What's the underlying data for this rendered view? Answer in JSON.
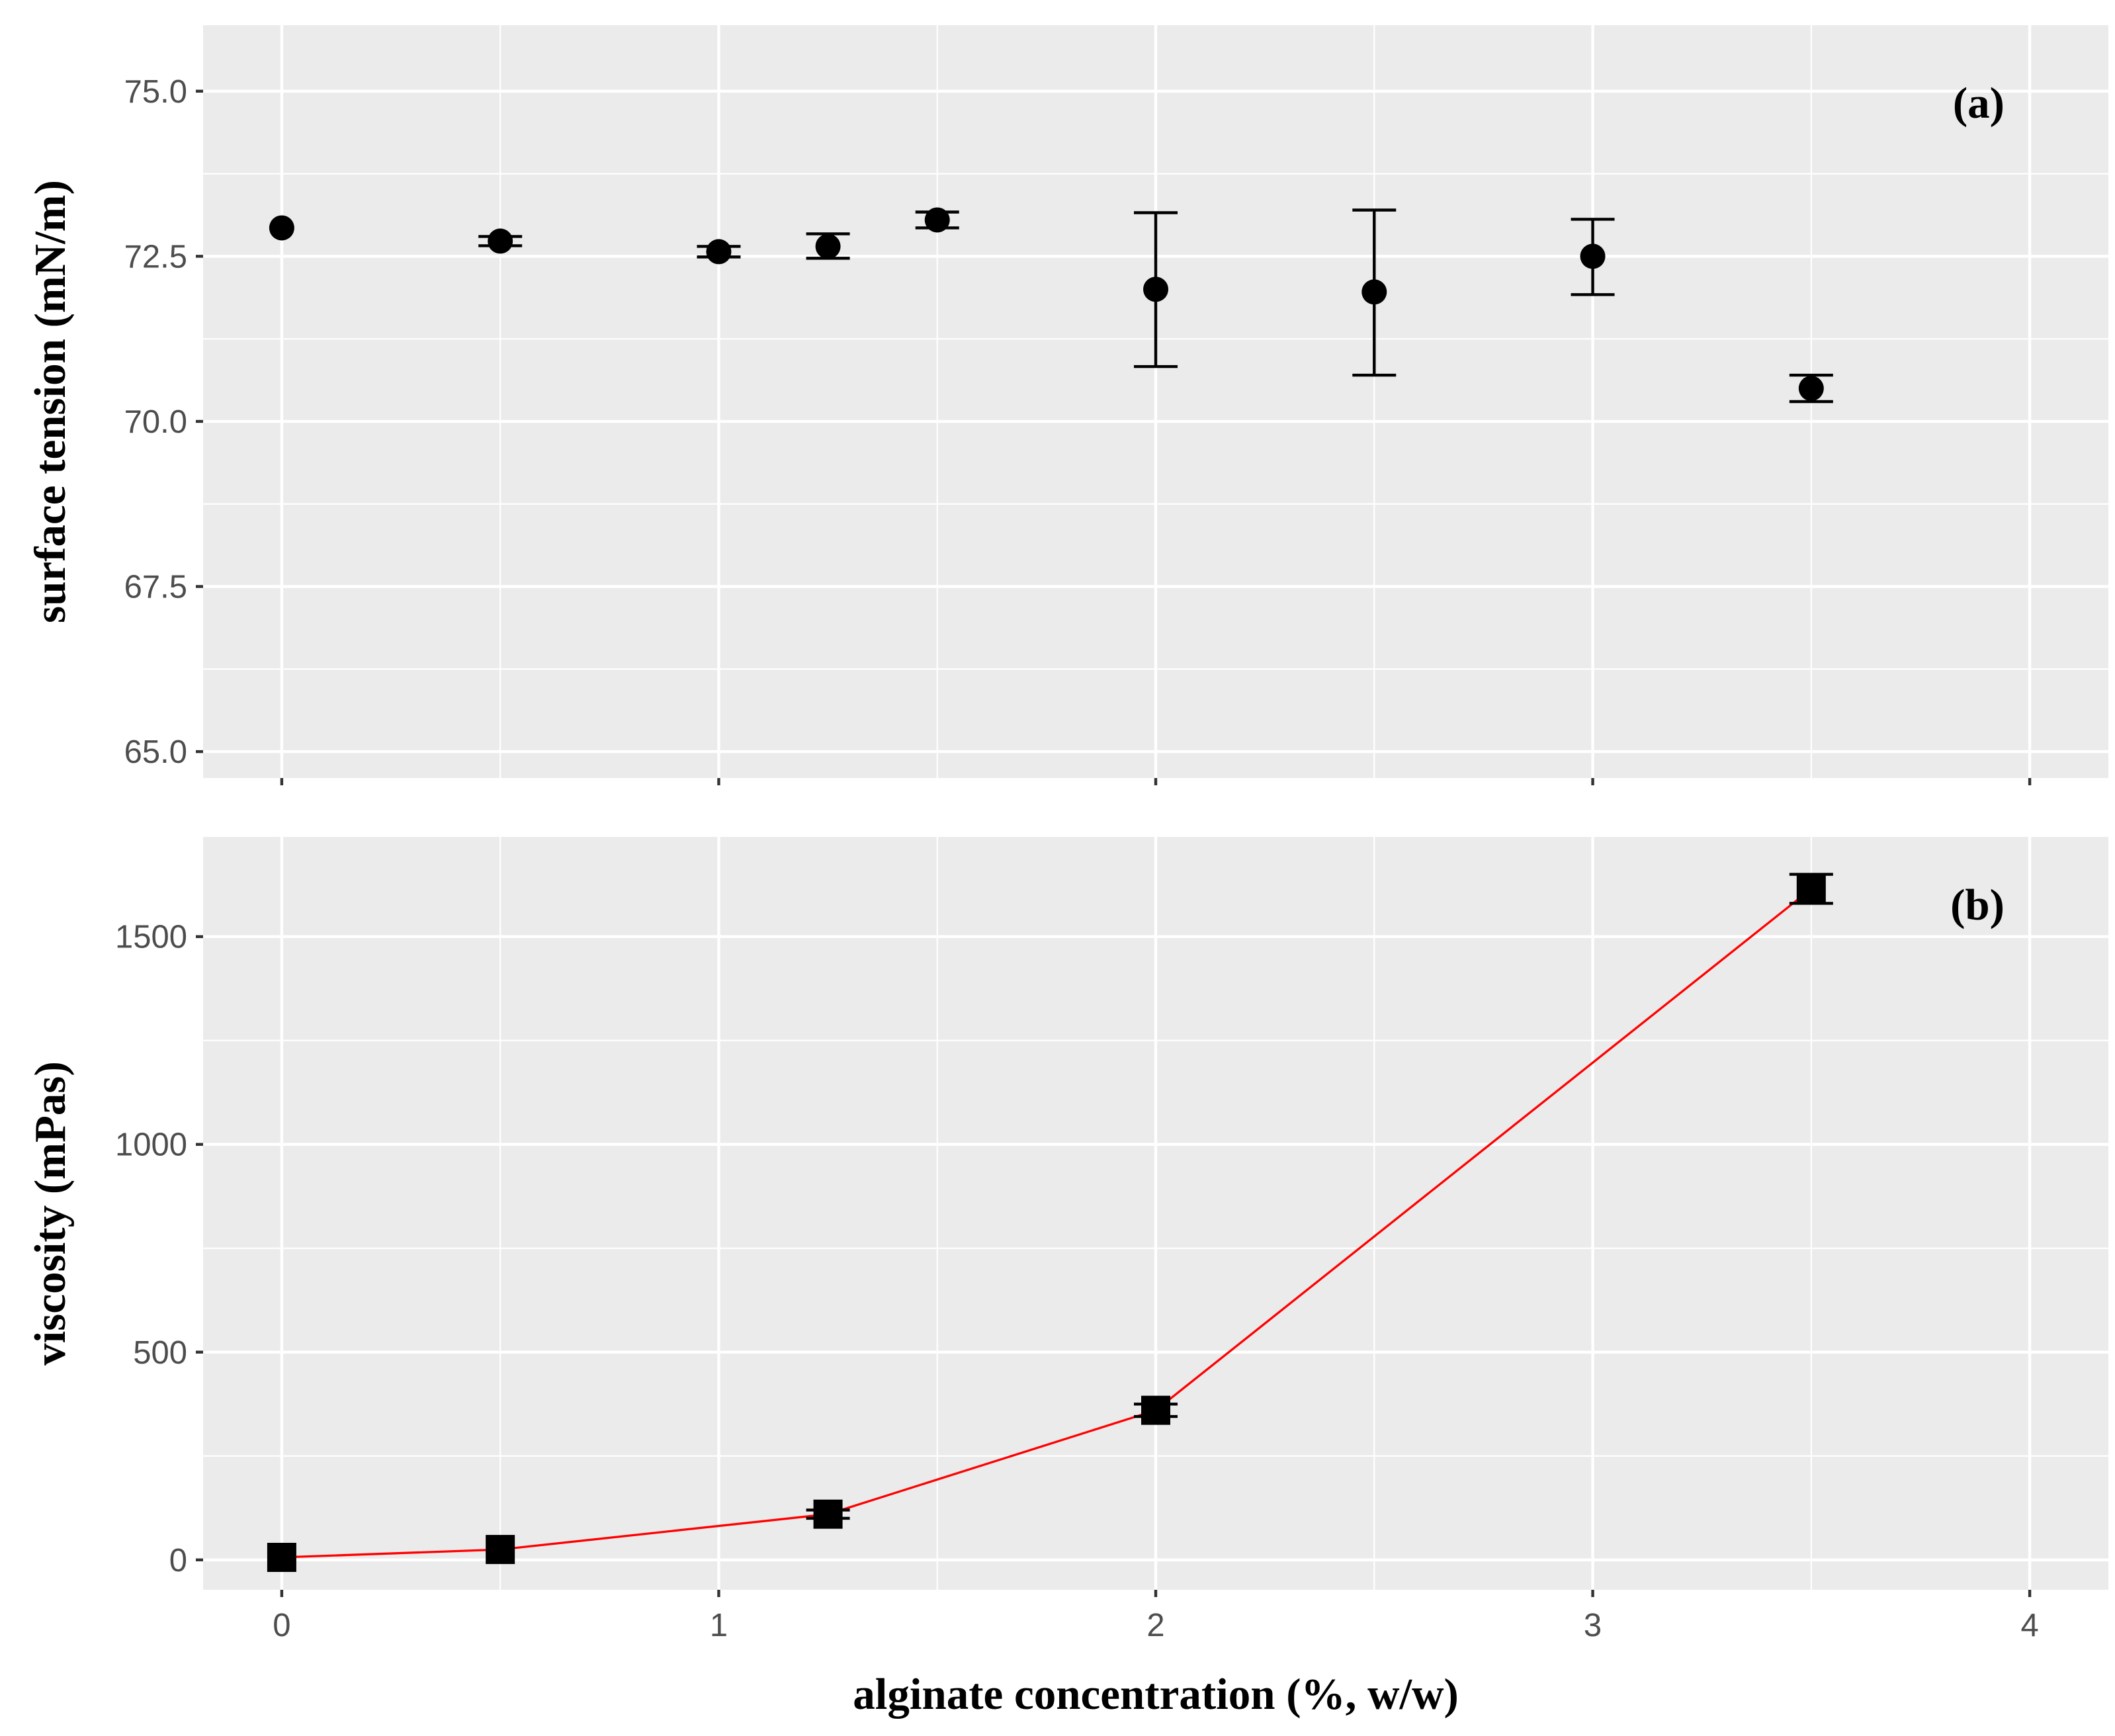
{
  "chart_data": [
    {
      "panel_label": "(a)",
      "type": "scatter",
      "ylabel": "surface tension (mN/m)",
      "ylim": [
        64.6,
        76.0
      ],
      "yticks": [
        65.0,
        67.5,
        70.0,
        72.5,
        75.0
      ],
      "ytick_labels": [
        "65.0",
        "67.5",
        "70.0",
        "72.5",
        "75.0"
      ],
      "xlim": [
        -0.18,
        4.18
      ],
      "xticks": [
        0,
        1,
        2,
        3,
        4
      ],
      "x_tick_labels_shown": false,
      "grid": true,
      "marker": "circle",
      "series": [
        {
          "x": [
            0,
            0.5,
            1.0,
            1.25,
            1.5,
            2.0,
            2.5,
            3.0,
            3.5
          ],
          "y": [
            72.93,
            72.73,
            72.57,
            72.65,
            73.05,
            72.0,
            71.96,
            72.5,
            70.5
          ],
          "y_low": [
            null,
            72.66,
            72.49,
            72.47,
            72.93,
            70.83,
            70.7,
            71.92,
            70.3
          ],
          "y_high": [
            null,
            72.8,
            72.65,
            72.84,
            73.17,
            73.16,
            73.2,
            73.06,
            70.7
          ]
        }
      ]
    },
    {
      "panel_label": "(b)",
      "type": "line",
      "ylabel": "viscosity (mPas)",
      "xlabel": "alginate concentration (%, w/w)",
      "ylim": [
        -72,
        1740
      ],
      "yticks": [
        0,
        500,
        1000,
        1500
      ],
      "ytick_labels": [
        "0",
        "500",
        "1000",
        "1500"
      ],
      "xlim": [
        -0.18,
        4.18
      ],
      "xticks": [
        0,
        1,
        2,
        3,
        4
      ],
      "xtick_labels": [
        "0",
        "1",
        "2",
        "3",
        "4"
      ],
      "grid": true,
      "marker": "square",
      "line_color": "#ff0000",
      "series": [
        {
          "x": [
            0,
            0.5,
            1.25,
            2.0,
            3.5
          ],
          "y": [
            6,
            25,
            110,
            360,
            1615
          ],
          "y_low": [
            null,
            null,
            100,
            345,
            1580
          ],
          "y_high": [
            null,
            null,
            120,
            375,
            1650
          ]
        }
      ]
    }
  ]
}
